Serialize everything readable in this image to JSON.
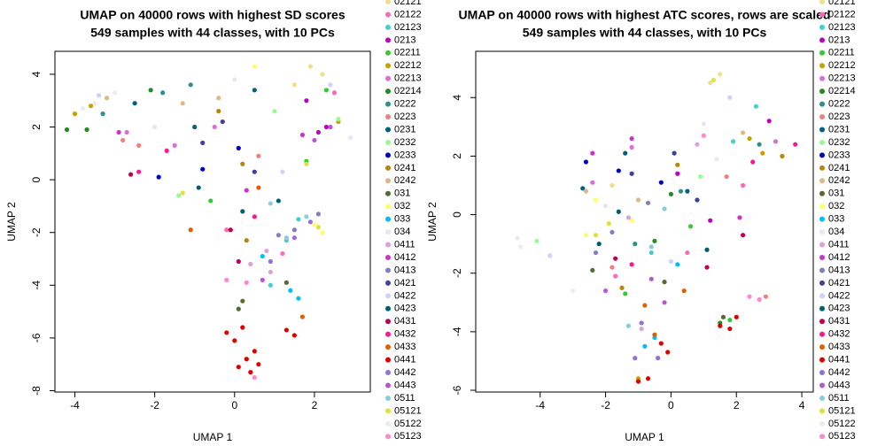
{
  "chart_data": [
    {
      "type": "scatter",
      "title": "UMAP on 40000 rows with highest SD scores",
      "subtitle": "549 samples with 44 classes, with 10 PCs",
      "x_label": "UMAP 1",
      "y_label": "UMAP 2",
      "xlim": [
        -4.5,
        3.4
      ],
      "ylim": [
        -8.05,
        4.87
      ],
      "xticks": [
        -4,
        -2,
        0,
        2
      ],
      "yticks": [
        -8,
        -6,
        -4,
        -2,
        0,
        2,
        4
      ],
      "series": [
        {
          "name": "02121",
          "color": "#eee08a",
          "x": [
            1.9,
            2.2,
            1.5
          ],
          "y": [
            4.3,
            4.0,
            3.6
          ]
        },
        {
          "name": "02122",
          "color": "#ff69b4",
          "x": [
            2.5,
            -0.2,
            1.2
          ],
          "y": [
            3.3,
            -1.9,
            -2.8
          ]
        },
        {
          "name": "02123",
          "color": "#40d0d0",
          "x": [
            1.3,
            1.6,
            0.9
          ],
          "y": [
            -2.3,
            -1.5,
            -4.0
          ]
        },
        {
          "name": "0213",
          "color": "#c000c0",
          "x": [
            2.1,
            2.3,
            1.8
          ],
          "y": [
            1.8,
            2.0,
            3.0
          ]
        },
        {
          "name": "02211",
          "color": "#32cd32",
          "x": [
            1.8,
            -0.6,
            2.3
          ],
          "y": [
            0.7,
            -0.8,
            3.4
          ]
        },
        {
          "name": "02212",
          "color": "#c8a000",
          "x": [
            -4.0,
            -3.6,
            2.6
          ],
          "y": [
            2.5,
            2.8,
            2.2
          ]
        },
        {
          "name": "02213",
          "color": "#da70d6",
          "x": [
            -1.5,
            -2.7,
            -0.5
          ],
          "y": [
            1.3,
            1.8,
            2.0
          ]
        },
        {
          "name": "02214",
          "color": "#228b22",
          "x": [
            -4.2,
            -2.1,
            -3.7
          ],
          "y": [
            1.9,
            3.4,
            1.9
          ]
        },
        {
          "name": "0222",
          "color": "#2f8f8f",
          "x": [
            -1.8,
            -3.3,
            -1.1
          ],
          "y": [
            3.3,
            2.5,
            3.6
          ]
        },
        {
          "name": "0223",
          "color": "#f08080",
          "x": [
            -2.8,
            -2.4,
            0.6
          ],
          "y": [
            1.5,
            1.3,
            0.9
          ]
        },
        {
          "name": "0231",
          "color": "#006080",
          "x": [
            -2.5,
            0.5,
            -1.0
          ],
          "y": [
            2.9,
            3.4,
            2.0
          ]
        },
        {
          "name": "0232",
          "color": "#98fb98",
          "x": [
            1.0,
            2.6,
            -1.4
          ],
          "y": [
            2.6,
            2.3,
            -0.6
          ]
        },
        {
          "name": "0233",
          "color": "#0000cd",
          "x": [
            -0.8,
            0.1,
            -1.9
          ],
          "y": [
            0.4,
            1.2,
            0.1
          ]
        },
        {
          "name": "0241",
          "color": "#b8860b",
          "x": [
            0.2,
            -0.4,
            0.3
          ],
          "y": [
            0.6,
            2.6,
            -2.3
          ]
        },
        {
          "name": "0242",
          "color": "#deb887",
          "x": [
            -3.2,
            -1.3,
            -0.4
          ],
          "y": [
            3.1,
            2.9,
            3.1
          ]
        },
        {
          "name": "031",
          "color": "#556b2f",
          "x": [
            0.1,
            0.2,
            1.3
          ],
          "y": [
            -4.9,
            -4.6,
            -3.9
          ]
        },
        {
          "name": "032",
          "color": "#ffff66",
          "x": [
            0.5,
            2.0,
            2.2
          ],
          "y": [
            4.3,
            -1.7,
            -2.0
          ]
        },
        {
          "name": "033",
          "color": "#00bfff",
          "x": [
            0.7,
            1.4,
            1.6
          ],
          "y": [
            -2.9,
            -4.2,
            -4.5
          ]
        },
        {
          "name": "034",
          "color": "#e6e6fa",
          "x": [
            2.9,
            0.0,
            -2.0
          ],
          "y": [
            1.6,
            3.8,
            2.0
          ]
        },
        {
          "name": "0411",
          "color": "#dda0dd",
          "x": [
            0.8,
            0.4,
            0.9
          ],
          "y": [
            -2.7,
            -3.2,
            -3.5
          ]
        },
        {
          "name": "0412",
          "color": "#cc33cc",
          "x": [
            -2.9,
            0.3,
            1.7
          ],
          "y": [
            1.8,
            -0.4,
            1.7
          ]
        },
        {
          "name": "0413",
          "color": "#8080c0",
          "x": [
            1.5,
            1.1,
            2.1
          ],
          "y": [
            -1.9,
            -2.1,
            -1.3
          ]
        },
        {
          "name": "0421",
          "color": "#40409f",
          "x": [
            -0.3,
            -0.8,
            0.5
          ],
          "y": [
            2.2,
            1.4,
            0.3
          ]
        },
        {
          "name": "0422",
          "color": "#d0d0f8",
          "x": [
            -3.4,
            1.2,
            2.4
          ],
          "y": [
            3.2,
            0.3,
            3.6
          ]
        },
        {
          "name": "0423",
          "color": "#005f6f",
          "x": [
            -0.9,
            1.1,
            0.2
          ],
          "y": [
            -0.3,
            -0.8,
            -1.2
          ]
        },
        {
          "name": "0431",
          "color": "#c00050",
          "x": [
            -2.6,
            -0.1,
            0.1
          ],
          "y": [
            0.2,
            -1.9,
            -3.1
          ]
        },
        {
          "name": "0432",
          "color": "#ff1493",
          "x": [
            -1.7,
            -2.4,
            0.5
          ],
          "y": [
            1.1,
            0.3,
            -1.4
          ]
        },
        {
          "name": "0433",
          "color": "#e06000",
          "x": [
            1.7,
            0.6,
            -1.1
          ],
          "y": [
            -5.2,
            -0.3,
            -1.9
          ]
        },
        {
          "name": "0441",
          "color": "#e00000",
          "x": [
            0.2,
            0.0,
            0.3,
            0.4,
            -0.2,
            0.6,
            0.1,
            0.5,
            1.3,
            1.5
          ],
          "y": [
            -5.6,
            -6.1,
            -6.8,
            -7.3,
            -5.8,
            -7.0,
            -7.1,
            -6.5,
            -5.7,
            -5.9
          ]
        },
        {
          "name": "0442",
          "color": "#9370db",
          "x": [
            0.9,
            1.5,
            1.9
          ],
          "y": [
            -3.1,
            -2.2,
            -1.6
          ]
        },
        {
          "name": "0443",
          "color": "#ba55d3",
          "x": [
            2.0,
            2.4,
            0.7
          ],
          "y": [
            1.5,
            2.0,
            -3.8
          ]
        },
        {
          "name": "0511",
          "color": "#87cedb",
          "x": [
            1.8,
            1.3,
            0.9
          ],
          "y": [
            -1.4,
            -2.2,
            -0.9
          ]
        },
        {
          "name": "05121",
          "color": "#e0e040",
          "x": [
            2.1,
            1.8,
            -1.3
          ],
          "y": [
            -1.8,
            0.6,
            -0.5
          ]
        },
        {
          "name": "05122",
          "color": "#ececec",
          "x": [
            -3.0,
            -3.8,
            -3.5
          ],
          "y": [
            3.3,
            2.7,
            2.9
          ]
        },
        {
          "name": "05123",
          "color": "#ff88cc",
          "x": [
            -0.2,
            0.3,
            0.5
          ],
          "y": [
            -3.8,
            -3.9,
            -7.5
          ]
        }
      ]
    },
    {
      "type": "scatter",
      "title": "UMAP on 40000 rows with highest ATC scores, rows are scaled",
      "subtitle": "549 samples with 44 classes, with 10 PCs",
      "x_label": "UMAP 1",
      "y_label": "UMAP 2",
      "xlim": [
        -5.97,
        4.35
      ],
      "ylim": [
        -6.06,
        5.58
      ],
      "xticks": [
        -4,
        -2,
        0,
        2,
        4
      ],
      "yticks": [
        -6,
        -4,
        -2,
        0,
        2,
        4
      ],
      "series": [
        {
          "name": "02121",
          "color": "#eee08a",
          "x": [
            1.5,
            1.2,
            -1.8
          ],
          "y": [
            4.8,
            4.5,
            1.0
          ]
        },
        {
          "name": "02122",
          "color": "#ff69b4",
          "x": [
            2.2,
            -1.7,
            0.5
          ],
          "y": [
            1.0,
            -2.1,
            -1.3
          ]
        },
        {
          "name": "02123",
          "color": "#40d0d0",
          "x": [
            2.6,
            1.9,
            -0.6
          ],
          "y": [
            3.7,
            2.5,
            -1.3
          ]
        },
        {
          "name": "0213",
          "color": "#c000c0",
          "x": [
            3.0,
            0.2,
            1.2
          ],
          "y": [
            3.2,
            1.4,
            -0.2
          ]
        },
        {
          "name": "02211",
          "color": "#32cd32",
          "x": [
            1.8,
            -1.4,
            0.6
          ],
          "y": [
            -3.6,
            -2.7,
            -0.4
          ]
        },
        {
          "name": "02212",
          "color": "#c8a000",
          "x": [
            2.8,
            -1.0,
            2.4
          ],
          "y": [
            2.1,
            -5.6,
            2.6
          ]
        },
        {
          "name": "02213",
          "color": "#da70d6",
          "x": [
            3.2,
            -2.4,
            -1.2
          ],
          "y": [
            2.5,
            1.1,
            2.3
          ]
        },
        {
          "name": "02214",
          "color": "#228b22",
          "x": [
            1.5,
            -0.5,
            0.0
          ],
          "y": [
            -3.7,
            -0.9,
            0.7
          ]
        },
        {
          "name": "0222",
          "color": "#2f8f8f",
          "x": [
            -1.1,
            2.7,
            0.3
          ],
          "y": [
            -1.0,
            2.4,
            0.8
          ]
        },
        {
          "name": "0223",
          "color": "#f08080",
          "x": [
            -1.8,
            1.7,
            2.9
          ],
          "y": [
            -1.8,
            1.3,
            -2.8
          ]
        },
        {
          "name": "0231",
          "color": "#006080",
          "x": [
            -2.7,
            -1.4,
            0.5
          ],
          "y": [
            0.9,
            2.1,
            0.8
          ]
        },
        {
          "name": "0232",
          "color": "#98fb98",
          "x": [
            -4.1,
            -2.2,
            0.9
          ],
          "y": [
            -0.9,
            -1.0,
            1.3
          ]
        },
        {
          "name": "0233",
          "color": "#0000cd",
          "x": [
            -2.6,
            -1.6,
            -0.3
          ],
          "y": [
            1.8,
            1.5,
            1.1
          ]
        },
        {
          "name": "0241",
          "color": "#b8860b",
          "x": [
            -1.5,
            3.4,
            0.2
          ],
          "y": [
            -2.5,
            2.0,
            1.7
          ]
        },
        {
          "name": "0242",
          "color": "#deb887",
          "x": [
            -2.6,
            -1.0,
            2.2
          ],
          "y": [
            0.8,
            0.5,
            2.8
          ]
        },
        {
          "name": "031",
          "color": "#556b2f",
          "x": [
            -2.4,
            -0.2,
            1.6
          ],
          "y": [
            -1.9,
            -2.3,
            -3.5
          ]
        },
        {
          "name": "032",
          "color": "#ffff66",
          "x": [
            -2.3,
            -2.6,
            -1.2
          ],
          "y": [
            0.5,
            -0.7,
            -0.2
          ]
        },
        {
          "name": "033",
          "color": "#00bfff",
          "x": [
            -0.8,
            -0.5,
            0.2
          ],
          "y": [
            -4.5,
            -4.2,
            -1.7
          ]
        },
        {
          "name": "034",
          "color": "#e6e6fa",
          "x": [
            -2.0,
            1.0,
            1.4
          ],
          "y": [
            0.3,
            3.1,
            1.9
          ]
        },
        {
          "name": "0411",
          "color": "#dda0dd",
          "x": [
            -1.3,
            -0.9,
            0.8
          ],
          "y": [
            -0.1,
            -3.9,
            2.4
          ]
        },
        {
          "name": "0412",
          "color": "#cc33cc",
          "x": [
            -2.4,
            -1.2,
            2.1
          ],
          "y": [
            2.1,
            2.6,
            -0.1
          ]
        },
        {
          "name": "0413",
          "color": "#8080c0",
          "x": [
            -2.3,
            -1.8,
            -0.7
          ],
          "y": [
            -1.3,
            -0.6,
            0.4
          ]
        },
        {
          "name": "0421",
          "color": "#40409f",
          "x": [
            -1.2,
            0.1,
            0.8
          ],
          "y": [
            1.4,
            2.1,
            0.5
          ]
        },
        {
          "name": "0422",
          "color": "#d0d0f8",
          "x": [
            -3.7,
            0.0,
            1.8
          ],
          "y": [
            -1.4,
            -1.6,
            4.0
          ]
        },
        {
          "name": "0423",
          "color": "#005f6f",
          "x": [
            -2.2,
            -1.6,
            1.1
          ],
          "y": [
            -1.0,
            0.1,
            -1.2
          ]
        },
        {
          "name": "0431",
          "color": "#c00050",
          "x": [
            -1.7,
            1.1,
            2.2
          ],
          "y": [
            -1.5,
            -1.8,
            -0.7
          ]
        },
        {
          "name": "0432",
          "color": "#ff1493",
          "x": [
            -1.2,
            2.5,
            3.8
          ],
          "y": [
            -1.7,
            1.8,
            2.4
          ]
        },
        {
          "name": "0433",
          "color": "#e06000",
          "x": [
            -0.5,
            -0.8,
            0.4
          ],
          "y": [
            -4.1,
            -3.1,
            -2.6
          ]
        },
        {
          "name": "0441",
          "color": "#e00000",
          "x": [
            -0.3,
            -0.1,
            1.5,
            1.8,
            2.0,
            -1.0,
            -0.7
          ],
          "y": [
            -4.4,
            -4.7,
            -3.8,
            -3.9,
            -3.5,
            -5.7,
            -5.6
          ]
        },
        {
          "name": "0442",
          "color": "#9370db",
          "x": [
            -1.1,
            -0.9,
            -0.4
          ],
          "y": [
            -4.9,
            -3.7,
            -4.9
          ]
        },
        {
          "name": "0443",
          "color": "#ba55d3",
          "x": [
            -2.0,
            -0.6,
            -0.2
          ],
          "y": [
            -2.6,
            -2.2,
            -3.0
          ]
        },
        {
          "name": "0511",
          "color": "#87cedb",
          "x": [
            -1.3,
            -0.6,
            -0.2
          ],
          "y": [
            -3.8,
            -1.1,
            0.2
          ]
        },
        {
          "name": "05121",
          "color": "#e0e040",
          "x": [
            -2.3,
            -1.9,
            1.3
          ],
          "y": [
            -0.7,
            -0.3,
            4.6
          ]
        },
        {
          "name": "05122",
          "color": "#ececec",
          "x": [
            -4.7,
            -4.6,
            -3.0
          ],
          "y": [
            -0.8,
            -1.1,
            -2.6
          ]
        },
        {
          "name": "05123",
          "color": "#ff88cc",
          "x": [
            2.7,
            2.4,
            1.0
          ],
          "y": [
            -2.9,
            -2.8,
            2.7
          ]
        }
      ]
    }
  ]
}
